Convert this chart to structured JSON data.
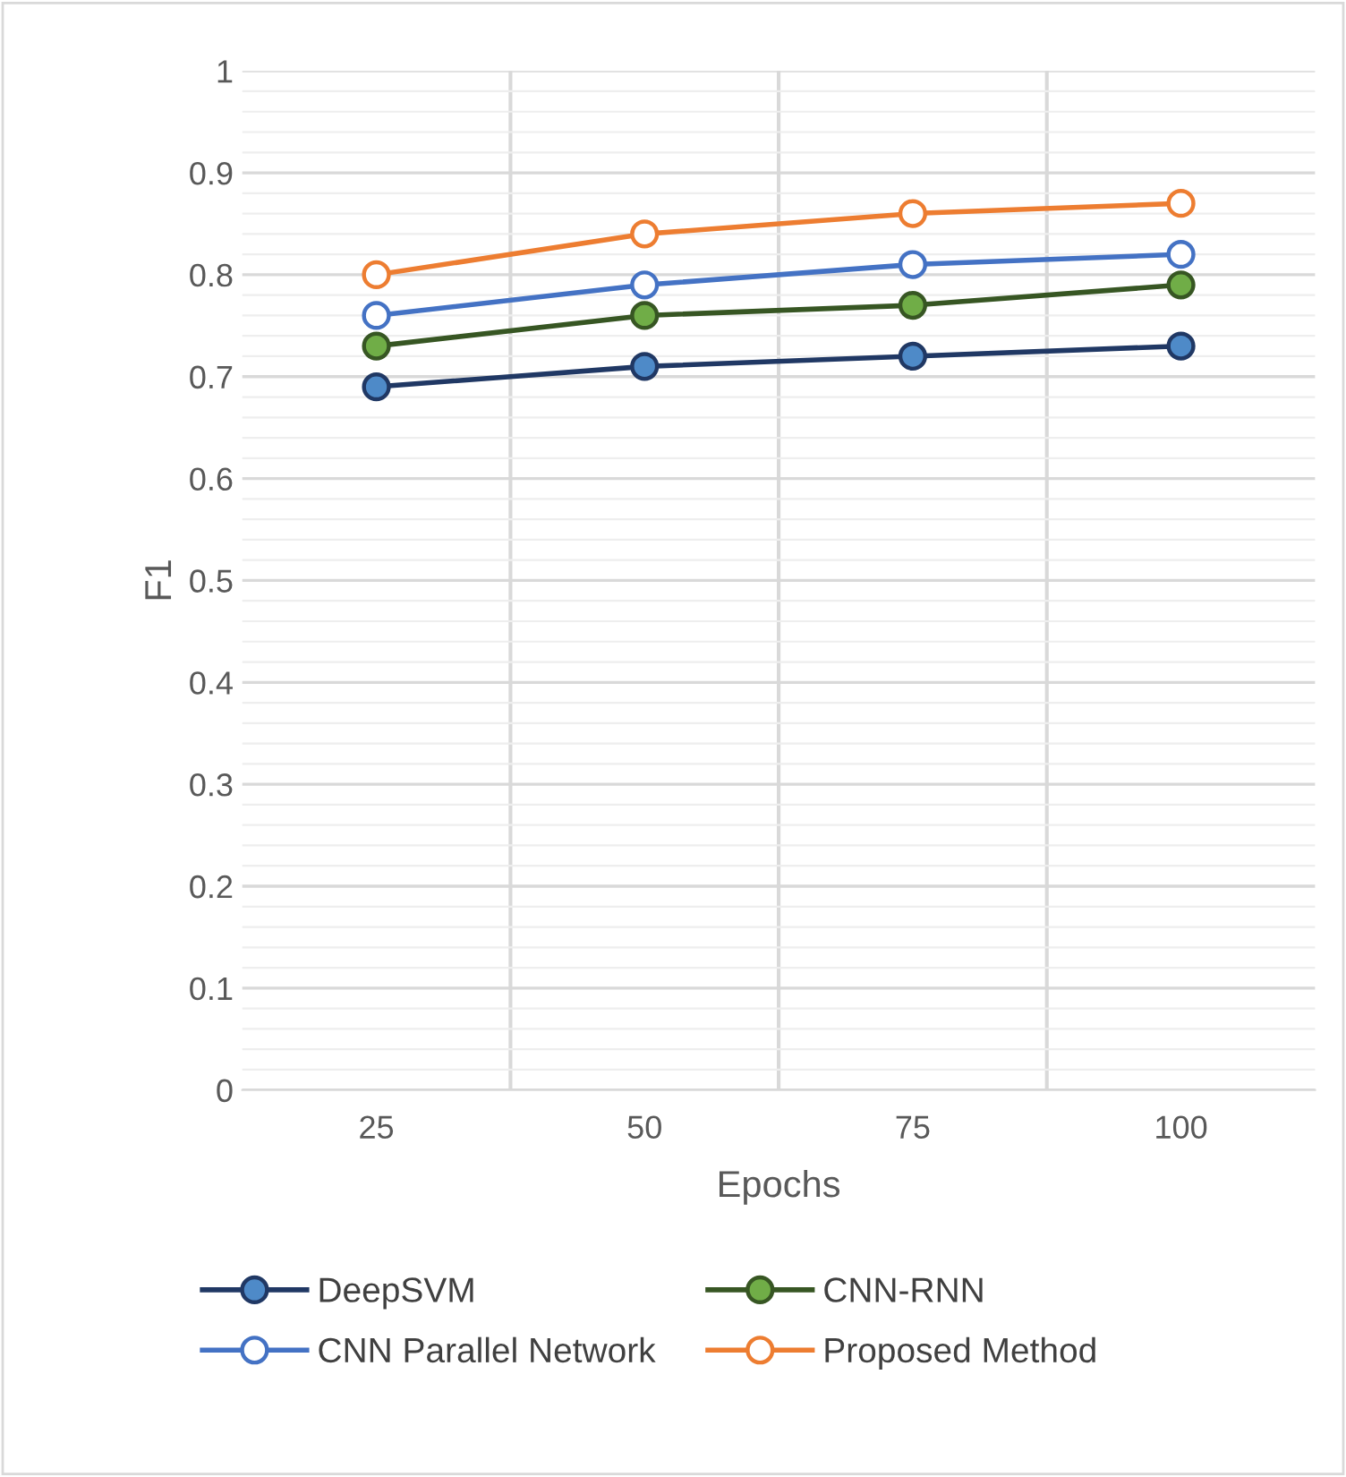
{
  "chart_data": {
    "type": "line",
    "xlabel": "Epochs",
    "ylabel": "F1",
    "categories": [
      "25",
      "50",
      "75",
      "100"
    ],
    "series": [
      {
        "name": "DeepSVM",
        "color": "#203864",
        "colors": [
          "#4e8ac8",
          "#4e8ac8",
          "#4e8ac8",
          "#4e8ac8"
        ],
        "values": [
          0.69,
          0.71,
          0.72,
          0.73
        ]
      },
      {
        "name": "CNN-RNN",
        "color": "#375623",
        "colors": [
          "#70ad47",
          "#70ad47",
          "#70ad47",
          "#70ad47"
        ],
        "values": [
          0.73,
          0.76,
          0.77,
          0.79
        ]
      },
      {
        "name": "CNN Parallel Network",
        "color": "#4472c4",
        "colors": [
          "#ffffff",
          "#ffffff",
          "#ffffff",
          "#ffffff"
        ],
        "values": [
          0.76,
          0.79,
          0.81,
          0.82
        ]
      },
      {
        "name": "Proposed Method",
        "color": "#ed7d31",
        "colors": [
          "#ffffff",
          "#ffffff",
          "#ffffff",
          "#ffffff"
        ],
        "values": [
          0.8,
          0.84,
          0.86,
          0.87
        ]
      }
    ],
    "ylim": [
      0,
      1
    ],
    "yticks": [
      0,
      0.1,
      0.2,
      0.3,
      0.4,
      0.5,
      0.6,
      0.7,
      0.8,
      0.9,
      1
    ],
    "grid": true,
    "legend": "bottom",
    "marker": "circle",
    "line_style": "solid"
  }
}
